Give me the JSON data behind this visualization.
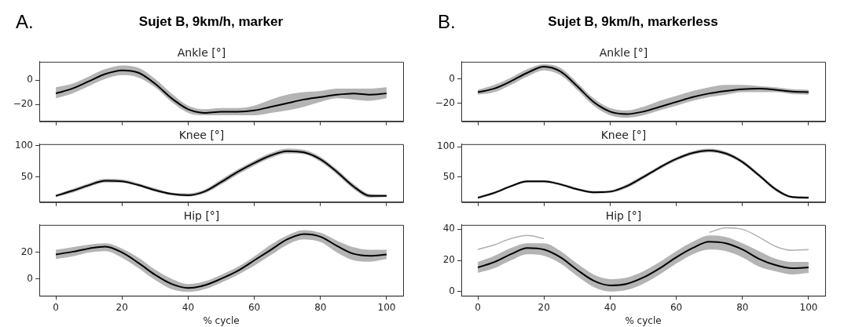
{
  "chart_data": [
    {
      "type": "line",
      "title": "Ankle [°]",
      "annotations": [
        "A.",
        "Sujet B, 9km/h, marker"
      ],
      "tick_labels": "y",
      "xlim": [
        -5,
        105
      ],
      "xticks": [
        0,
        20,
        40,
        60,
        80,
        100
      ],
      "ylim": [
        -34,
        15
      ],
      "yticks": [
        -20,
        0
      ],
      "x": [
        0,
        5,
        10,
        15,
        20,
        25,
        30,
        35,
        40,
        45,
        50,
        55,
        60,
        65,
        70,
        75,
        80,
        85,
        90,
        95,
        100
      ],
      "series": [
        {
          "color": "#000000",
          "values": [
            -11,
            -7,
            -1,
            5,
            8,
            6,
            -3,
            -15,
            -24,
            -27,
            -26,
            -26,
            -25,
            -22,
            -19,
            -16,
            -14,
            -12,
            -11,
            -12,
            -11
          ],
          "lower": [
            -15,
            -11,
            -5,
            1,
            4,
            2,
            -6,
            -18,
            -27,
            -29,
            -29,
            -29,
            -29,
            -27,
            -25,
            -22,
            -18,
            -15,
            -16,
            -17,
            -15
          ],
          "upper": [
            -6,
            -3,
            3,
            9,
            12,
            10,
            1,
            -11,
            -21,
            -24,
            -23,
            -23,
            -21,
            -16,
            -12,
            -10,
            -9,
            -7,
            -7,
            -7,
            -6
          ]
        }
      ]
    },
    {
      "type": "line",
      "title": "Knee [°]",
      "tick_labels": "y",
      "xlim": [
        -5,
        105
      ],
      "xticks": [
        0,
        20,
        40,
        60,
        80,
        100
      ],
      "ylim": [
        10,
        102
      ],
      "yticks": [
        50,
        100
      ],
      "x": [
        0,
        5,
        10,
        15,
        20,
        25,
        30,
        35,
        40,
        45,
        50,
        55,
        60,
        65,
        70,
        75,
        80,
        85,
        90,
        95,
        100
      ],
      "series": [
        {
          "color": "#000000",
          "values": [
            20,
            28,
            37,
            44,
            43,
            37,
            29,
            23,
            21,
            27,
            42,
            58,
            72,
            84,
            91,
            89,
            78,
            58,
            35,
            20,
            20
          ],
          "lower": [
            18,
            25,
            34,
            41,
            41,
            35,
            27,
            21,
            19,
            24,
            38,
            54,
            68,
            80,
            87,
            86,
            74,
            54,
            31,
            17,
            18
          ],
          "upper": [
            22,
            31,
            40,
            47,
            46,
            40,
            32,
            25,
            24,
            30,
            46,
            62,
            76,
            88,
            95,
            93,
            82,
            62,
            39,
            23,
            22
          ]
        }
      ]
    },
    {
      "type": "line",
      "title": "Hip [°]",
      "xlabel": "% cycle",
      "xlim": [
        -5,
        105
      ],
      "xticks": [
        0,
        20,
        40,
        60,
        80,
        100
      ],
      "ylim": [
        -13,
        41
      ],
      "yticks": [
        0,
        20
      ],
      "x": [
        0,
        5,
        10,
        15,
        20,
        25,
        30,
        35,
        40,
        45,
        50,
        55,
        60,
        65,
        70,
        75,
        80,
        85,
        90,
        95,
        100
      ],
      "series": [
        {
          "color": "#000000",
          "values": [
            18.5,
            20.5,
            23,
            24.5,
            20,
            12,
            3,
            -4,
            -7,
            -5,
            0,
            6,
            14,
            22,
            30,
            34,
            32,
            25,
            19,
            17.5,
            18.5
          ],
          "lower": [
            15,
            17,
            20,
            21,
            16,
            8,
            -1,
            -8,
            -10,
            -8,
            -3,
            3,
            10,
            18,
            26,
            30,
            28,
            20,
            14,
            13,
            15
          ],
          "upper": [
            22,
            24,
            26,
            27,
            23,
            16,
            7,
            0,
            -4,
            -2,
            3,
            9,
            17,
            26,
            33,
            37,
            35,
            29,
            24,
            22,
            22
          ]
        }
      ]
    },
    {
      "type": "line",
      "title": "Ankle [°]",
      "annotations": [
        "B.",
        "Sujet B, 9km/h, markerless"
      ],
      "tick_labels": "y",
      "xlim": [
        -5,
        105
      ],
      "xticks": [
        0,
        20,
        40,
        60,
        80,
        100
      ],
      "ylim": [
        -35,
        14
      ],
      "yticks": [
        -20,
        0
      ],
      "x": [
        0,
        5,
        10,
        15,
        20,
        25,
        30,
        35,
        40,
        45,
        50,
        55,
        60,
        65,
        70,
        75,
        80,
        85,
        90,
        95,
        100
      ],
      "series": [
        {
          "color": "#000000",
          "values": [
            -11,
            -8,
            -2,
            5,
            10,
            6,
            -6,
            -19,
            -27,
            -29,
            -27,
            -23,
            -19,
            -15,
            -12,
            -10,
            -8.5,
            -8,
            -9,
            -10.5,
            -11
          ],
          "lower": [
            -13,
            -11,
            -5,
            2,
            7,
            3,
            -9,
            -22,
            -30,
            -32,
            -30,
            -26,
            -22,
            -18,
            -15,
            -13,
            -11,
            -11,
            -11,
            -12.5,
            -13
          ],
          "upper": [
            -9,
            -5,
            1,
            8,
            12,
            9,
            -3,
            -16,
            -24,
            -26,
            -23,
            -18,
            -14,
            -10,
            -7,
            -5,
            -5,
            -6,
            -7,
            -8.5,
            -9
          ]
        }
      ]
    },
    {
      "type": "line",
      "title": "Knee [°]",
      "tick_labels": "y",
      "xlim": [
        -5,
        105
      ],
      "xticks": [
        0,
        20,
        40,
        60,
        80,
        100
      ],
      "ylim": [
        8.6,
        104.5
      ],
      "yticks": [
        50,
        100
      ],
      "x": [
        0,
        5,
        10,
        15,
        20,
        25,
        30,
        35,
        40,
        45,
        50,
        55,
        60,
        65,
        70,
        75,
        80,
        85,
        90,
        95,
        100
      ],
      "series": [
        {
          "color": "#000000",
          "values": [
            16,
            24,
            35,
            43,
            43,
            38,
            30,
            25,
            26,
            35,
            50,
            66,
            80,
            90,
            94,
            89,
            75,
            53,
            30,
            17,
            16
          ],
          "lower": [
            14,
            22,
            33,
            41,
            41,
            36,
            28,
            23,
            24,
            32,
            47,
            63,
            77,
            87,
            91,
            86,
            72,
            50,
            27,
            15,
            14
          ],
          "upper": [
            18,
            26,
            37,
            45,
            45,
            40,
            32,
            27,
            28,
            38,
            53,
            69,
            83,
            93,
            97,
            92,
            78,
            56,
            33,
            19,
            18
          ]
        }
      ]
    },
    {
      "type": "line",
      "title": "Hip [°]",
      "xlabel": "% cycle",
      "xlim": [
        -5,
        105
      ],
      "xticks": [
        0,
        20,
        40,
        60,
        80,
        100
      ],
      "ylim": [
        -2.7,
        42.8
      ],
      "yticks": [
        0,
        20,
        40
      ],
      "x": [
        0,
        5,
        10,
        15,
        20,
        25,
        30,
        35,
        40,
        45,
        50,
        55,
        60,
        65,
        70,
        75,
        80,
        85,
        90,
        95,
        100
      ],
      "series": [
        {
          "color": "#000000",
          "values": [
            15.5,
            19,
            24,
            28,
            27,
            22,
            14,
            7,
            4,
            5,
            9,
            15,
            22,
            28,
            32,
            31,
            27,
            21,
            17,
            15,
            15.5
          ],
          "lower": [
            12,
            15,
            20,
            24,
            23,
            18,
            10,
            3,
            0,
            1,
            5,
            11,
            18,
            24,
            27,
            26,
            22,
            16,
            13,
            11,
            12
          ],
          "upper": [
            19,
            23,
            28,
            31,
            31,
            26,
            18,
            11,
            8,
            9,
            13,
            19,
            26,
            32,
            36,
            35,
            31,
            26,
            21,
            19,
            19
          ]
        },
        {
          "color": "#b0b0b0",
          "values": [
            27,
            30,
            34,
            36,
            34,
            null,
            null,
            null,
            null,
            null,
            null,
            null,
            null,
            null,
            38,
            41,
            40,
            35,
            29,
            26.5,
            27
          ]
        }
      ]
    }
  ]
}
